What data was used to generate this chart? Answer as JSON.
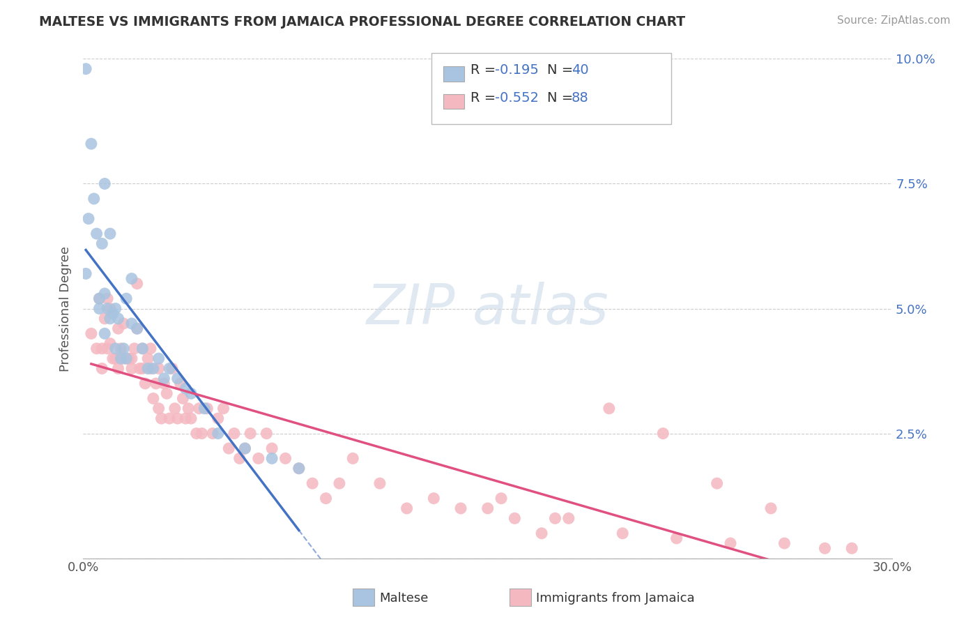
{
  "title": "MALTESE VS IMMIGRANTS FROM JAMAICA PROFESSIONAL DEGREE CORRELATION CHART",
  "source": "Source: ZipAtlas.com",
  "ylabel": "Professional Degree",
  "x_min": 0.0,
  "x_max": 0.3,
  "y_min": 0.0,
  "y_max": 0.1,
  "x_ticks": [
    0.0,
    0.05,
    0.1,
    0.15,
    0.2,
    0.25,
    0.3
  ],
  "y_ticks": [
    0.0,
    0.025,
    0.05,
    0.075,
    0.1
  ],
  "legend1_R": "-0.195",
  "legend1_N": "40",
  "legend2_R": "-0.552",
  "legend2_N": "88",
  "legend_label1": "Maltese",
  "legend_label2": "Immigrants from Jamaica",
  "color_blue": "#a8c4e0",
  "color_pink": "#f4b8c1",
  "trendline_blue": "#4472c4",
  "trendline_pink": "#e05080",
  "blue_points_x": [
    0.001,
    0.003,
    0.002,
    0.008,
    0.001,
    0.004,
    0.005,
    0.006,
    0.007,
    0.008,
    0.009,
    0.01,
    0.011,
    0.012,
    0.013,
    0.015,
    0.016,
    0.018,
    0.006,
    0.008,
    0.01,
    0.012,
    0.014,
    0.016,
    0.018,
    0.02,
    0.022,
    0.024,
    0.026,
    0.028,
    0.03,
    0.032,
    0.035,
    0.038,
    0.04,
    0.045,
    0.05,
    0.06,
    0.07,
    0.08
  ],
  "blue_points_y": [
    0.098,
    0.083,
    0.068,
    0.075,
    0.057,
    0.072,
    0.065,
    0.052,
    0.063,
    0.053,
    0.05,
    0.065,
    0.049,
    0.05,
    0.048,
    0.042,
    0.052,
    0.056,
    0.05,
    0.045,
    0.048,
    0.042,
    0.04,
    0.04,
    0.047,
    0.046,
    0.042,
    0.038,
    0.038,
    0.04,
    0.036,
    0.038,
    0.036,
    0.034,
    0.033,
    0.03,
    0.025,
    0.022,
    0.02,
    0.018
  ],
  "pink_points_x": [
    0.003,
    0.005,
    0.006,
    0.007,
    0.007,
    0.008,
    0.009,
    0.009,
    0.01,
    0.01,
    0.011,
    0.012,
    0.013,
    0.013,
    0.014,
    0.015,
    0.015,
    0.016,
    0.017,
    0.018,
    0.018,
    0.019,
    0.02,
    0.02,
    0.021,
    0.022,
    0.022,
    0.023,
    0.024,
    0.025,
    0.025,
    0.026,
    0.027,
    0.028,
    0.028,
    0.029,
    0.03,
    0.031,
    0.032,
    0.033,
    0.034,
    0.035,
    0.036,
    0.037,
    0.038,
    0.039,
    0.04,
    0.042,
    0.043,
    0.044,
    0.046,
    0.048,
    0.05,
    0.052,
    0.054,
    0.056,
    0.058,
    0.06,
    0.062,
    0.065,
    0.068,
    0.07,
    0.075,
    0.08,
    0.085,
    0.09,
    0.095,
    0.1,
    0.11,
    0.12,
    0.13,
    0.14,
    0.15,
    0.16,
    0.17,
    0.18,
    0.2,
    0.22,
    0.24,
    0.26,
    0.275,
    0.285,
    0.155,
    0.175,
    0.195,
    0.215,
    0.235,
    0.255
  ],
  "pink_points_y": [
    0.045,
    0.042,
    0.052,
    0.042,
    0.038,
    0.048,
    0.052,
    0.042,
    0.05,
    0.043,
    0.04,
    0.04,
    0.046,
    0.038,
    0.042,
    0.047,
    0.04,
    0.04,
    0.04,
    0.04,
    0.038,
    0.042,
    0.055,
    0.046,
    0.038,
    0.038,
    0.042,
    0.035,
    0.04,
    0.038,
    0.042,
    0.032,
    0.035,
    0.03,
    0.038,
    0.028,
    0.035,
    0.033,
    0.028,
    0.038,
    0.03,
    0.028,
    0.035,
    0.032,
    0.028,
    0.03,
    0.028,
    0.025,
    0.03,
    0.025,
    0.03,
    0.025,
    0.028,
    0.03,
    0.022,
    0.025,
    0.02,
    0.022,
    0.025,
    0.02,
    0.025,
    0.022,
    0.02,
    0.018,
    0.015,
    0.012,
    0.015,
    0.02,
    0.015,
    0.01,
    0.012,
    0.01,
    0.01,
    0.008,
    0.005,
    0.008,
    0.005,
    0.004,
    0.003,
    0.003,
    0.002,
    0.002,
    0.012,
    0.008,
    0.03,
    0.025,
    0.015,
    0.01
  ]
}
